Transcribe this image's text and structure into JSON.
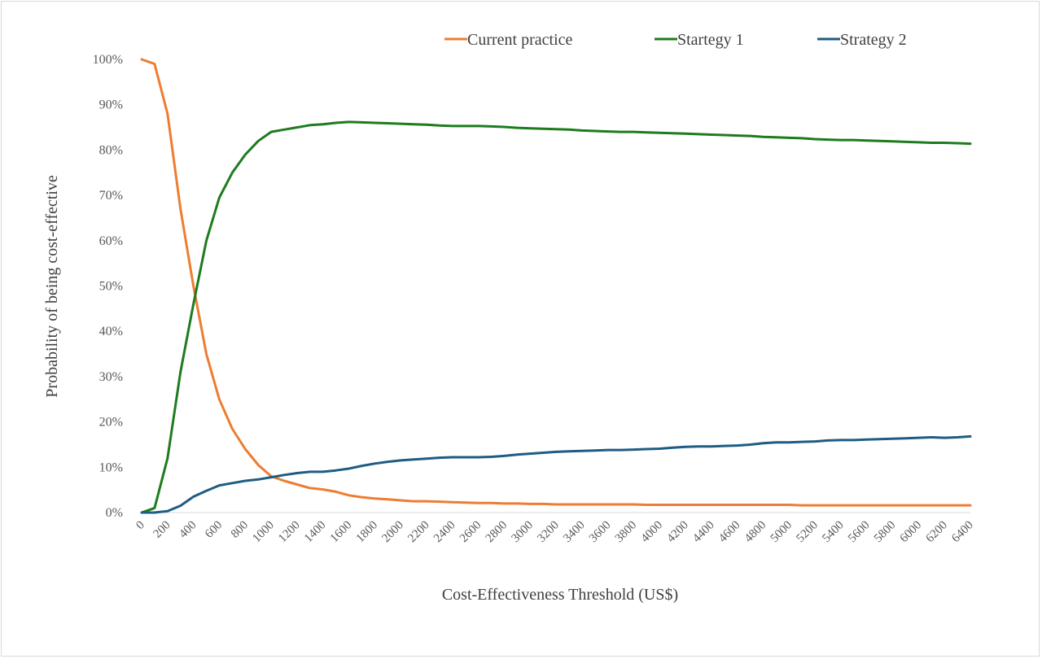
{
  "chart_data": {
    "type": "line",
    "title": "",
    "xlabel": "Cost-Effectiveness Threshold (US$)",
    "ylabel": "Probability of being cost-effective",
    "x_tick_labels": [
      "0",
      "200",
      "400",
      "600",
      "800",
      "1000",
      "1200",
      "1400",
      "1600",
      "1800",
      "2000",
      "2200",
      "2400",
      "2600",
      "2800",
      "3000",
      "3200",
      "3400",
      "3600",
      "3800",
      "4000",
      "4200",
      "4400",
      "4600",
      "4800",
      "5000",
      "5200",
      "5400",
      "5600",
      "5800",
      "6000",
      "6200",
      "6400"
    ],
    "y_tick_labels": [
      "0%",
      "10%",
      "20%",
      "30%",
      "40%",
      "50%",
      "60%",
      "70%",
      "80%",
      "90%",
      "100%"
    ],
    "xlim": [
      0,
      6400
    ],
    "ylim": [
      0,
      100
    ],
    "grid": false,
    "legend_position": "top",
    "x": [
      0,
      100,
      200,
      300,
      400,
      500,
      600,
      700,
      800,
      900,
      1000,
      1100,
      1200,
      1300,
      1400,
      1500,
      1600,
      1700,
      1800,
      1900,
      2000,
      2100,
      2200,
      2300,
      2400,
      2500,
      2600,
      2700,
      2800,
      2900,
      3000,
      3100,
      3200,
      3300,
      3400,
      3500,
      3600,
      3700,
      3800,
      3900,
      4000,
      4100,
      4200,
      4300,
      4400,
      4500,
      4600,
      4700,
      4800,
      4900,
      5000,
      5100,
      5200,
      5300,
      5400,
      5500,
      5600,
      5700,
      5800,
      5900,
      6000,
      6100,
      6200,
      6300,
      6400
    ],
    "series": [
      {
        "name": "Current practice",
        "color": "#ED7D31",
        "values": [
          100,
          99,
          88,
          67,
          50,
          35,
          25,
          18.5,
          14,
          10.5,
          8,
          7,
          6.2,
          5.4,
          5.1,
          4.6,
          3.8,
          3.4,
          3.1,
          2.9,
          2.7,
          2.5,
          2.5,
          2.4,
          2.3,
          2.2,
          2.1,
          2.1,
          2.0,
          2.0,
          1.9,
          1.9,
          1.8,
          1.8,
          1.8,
          1.8,
          1.8,
          1.8,
          1.8,
          1.7,
          1.7,
          1.7,
          1.7,
          1.7,
          1.7,
          1.7,
          1.7,
          1.7,
          1.7,
          1.7,
          1.7,
          1.6,
          1.6,
          1.6,
          1.6,
          1.6,
          1.6,
          1.6,
          1.6,
          1.6,
          1.6,
          1.6,
          1.6,
          1.6,
          1.6
        ]
      },
      {
        "name": "Startegy 1",
        "color": "#1E7B1E",
        "values": [
          0,
          1,
          12,
          31,
          46,
          60,
          69.5,
          75,
          79,
          82,
          84,
          84.5,
          85,
          85.5,
          85.7,
          86,
          86.2,
          86.1,
          86,
          85.9,
          85.8,
          85.7,
          85.6,
          85.4,
          85.3,
          85.3,
          85.3,
          85.2,
          85.1,
          84.9,
          84.8,
          84.7,
          84.6,
          84.5,
          84.3,
          84.2,
          84.1,
          84.0,
          84.0,
          83.9,
          83.8,
          83.7,
          83.6,
          83.5,
          83.4,
          83.3,
          83.2,
          83.1,
          82.9,
          82.8,
          82.7,
          82.6,
          82.4,
          82.3,
          82.2,
          82.2,
          82.1,
          82.0,
          81.9,
          81.8,
          81.7,
          81.6,
          81.6,
          81.5,
          81.4
        ]
      },
      {
        "name": "Strategy 2",
        "color": "#1F5C84",
        "values": [
          0,
          0,
          0.3,
          1.5,
          3.5,
          4.8,
          6.0,
          6.5,
          7.0,
          7.3,
          7.8,
          8.3,
          8.7,
          9.0,
          9.0,
          9.3,
          9.7,
          10.3,
          10.8,
          11.2,
          11.5,
          11.7,
          11.9,
          12.1,
          12.2,
          12.2,
          12.2,
          12.3,
          12.5,
          12.8,
          13.0,
          13.2,
          13.4,
          13.5,
          13.6,
          13.7,
          13.8,
          13.8,
          13.9,
          14.0,
          14.1,
          14.3,
          14.5,
          14.6,
          14.6,
          14.7,
          14.8,
          15.0,
          15.3,
          15.5,
          15.5,
          15.6,
          15.7,
          15.9,
          16.0,
          16.0,
          16.1,
          16.2,
          16.3,
          16.4,
          16.5,
          16.6,
          16.5,
          16.6,
          16.8
        ]
      }
    ]
  }
}
